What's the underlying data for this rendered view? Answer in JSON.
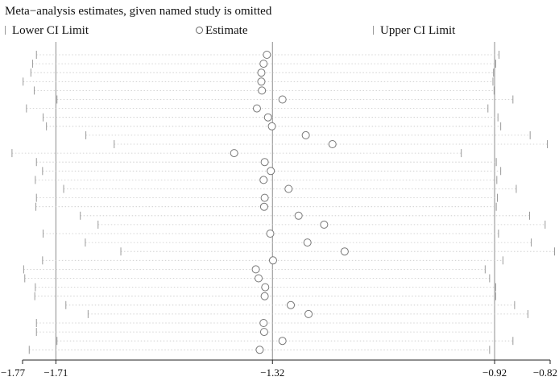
{
  "chart_data": {
    "type": "forest",
    "title": "Meta−analysis estimates, given named study is omitted",
    "legend": {
      "placement": "top",
      "entries": [
        {
          "key": "lower",
          "label": "Lower CI Limit"
        },
        {
          "key": "estimate",
          "label": "Estimate"
        },
        {
          "key": "upper",
          "label": "Upper CI Limit"
        }
      ]
    },
    "x_ticks": [
      "−1.77",
      "−1.71",
      "−1.32",
      "−0.92",
      "−0.82"
    ],
    "x_tick_values": [
      -1.77,
      -1.71,
      -1.32,
      -0.92,
      -0.82
    ],
    "xlim": [
      -1.77,
      -0.82
    ],
    "reference_lines": [
      -1.71,
      -1.32,
      -0.92
    ],
    "rows": [
      {
        "lower": -1.745,
        "estimate": -1.33,
        "upper": -0.912
      },
      {
        "lower": -1.752,
        "estimate": -1.336,
        "upper": -0.918
      },
      {
        "lower": -1.755,
        "estimate": -1.34,
        "upper": -0.922
      },
      {
        "lower": -1.769,
        "estimate": -1.34,
        "upper": -0.923
      },
      {
        "lower": -1.749,
        "estimate": -1.339,
        "upper": -0.921
      },
      {
        "lower": -1.708,
        "estimate": -1.302,
        "upper": -0.887
      },
      {
        "lower": -1.763,
        "estimate": -1.348,
        "upper": -0.932
      },
      {
        "lower": -1.733,
        "estimate": -1.328,
        "upper": -0.914
      },
      {
        "lower": -1.727,
        "estimate": -1.321,
        "upper": -0.909
      },
      {
        "lower": -1.656,
        "estimate": -1.26,
        "upper": -0.856
      },
      {
        "lower": -1.605,
        "estimate": -1.212,
        "upper": -0.825
      },
      {
        "lower": -1.789,
        "estimate": -1.389,
        "upper": -0.98
      },
      {
        "lower": -1.745,
        "estimate": -1.334,
        "upper": -0.917
      },
      {
        "lower": -1.734,
        "estimate": -1.323,
        "upper": -0.909
      },
      {
        "lower": -1.747,
        "estimate": -1.336,
        "upper": -0.916
      },
      {
        "lower": -1.696,
        "estimate": -1.291,
        "upper": -0.881
      },
      {
        "lower": -1.745,
        "estimate": -1.334,
        "upper": -0.915
      },
      {
        "lower": -1.746,
        "estimate": -1.335,
        "upper": -0.917
      },
      {
        "lower": -1.666,
        "estimate": -1.273,
        "upper": -0.857
      },
      {
        "lower": -1.634,
        "estimate": -1.227,
        "upper": -0.829
      },
      {
        "lower": -1.733,
        "estimate": -1.324,
        "upper": -0.913
      },
      {
        "lower": -1.657,
        "estimate": -1.257,
        "upper": -0.854
      },
      {
        "lower": -1.593,
        "estimate": -1.19,
        "upper": -0.812
      },
      {
        "lower": -1.734,
        "estimate": -1.319,
        "upper": -0.905
      },
      {
        "lower": -1.768,
        "estimate": -1.35,
        "upper": -0.937
      },
      {
        "lower": -1.766,
        "estimate": -1.345,
        "upper": -0.929
      },
      {
        "lower": -1.747,
        "estimate": -1.333,
        "upper": -0.918
      },
      {
        "lower": -1.748,
        "estimate": -1.334,
        "upper": -0.918
      },
      {
        "lower": -1.692,
        "estimate": -1.287,
        "upper": -0.884
      },
      {
        "lower": -1.652,
        "estimate": -1.255,
        "upper": -0.86
      },
      {
        "lower": -1.745,
        "estimate": -1.336,
        "upper": -0.92
      },
      {
        "lower": -1.745,
        "estimate": -1.335,
        "upper": -0.92
      },
      {
        "lower": -1.708,
        "estimate": -1.302,
        "upper": -0.887
      },
      {
        "lower": -1.758,
        "estimate": -1.343,
        "upper": -0.929
      }
    ]
  }
}
